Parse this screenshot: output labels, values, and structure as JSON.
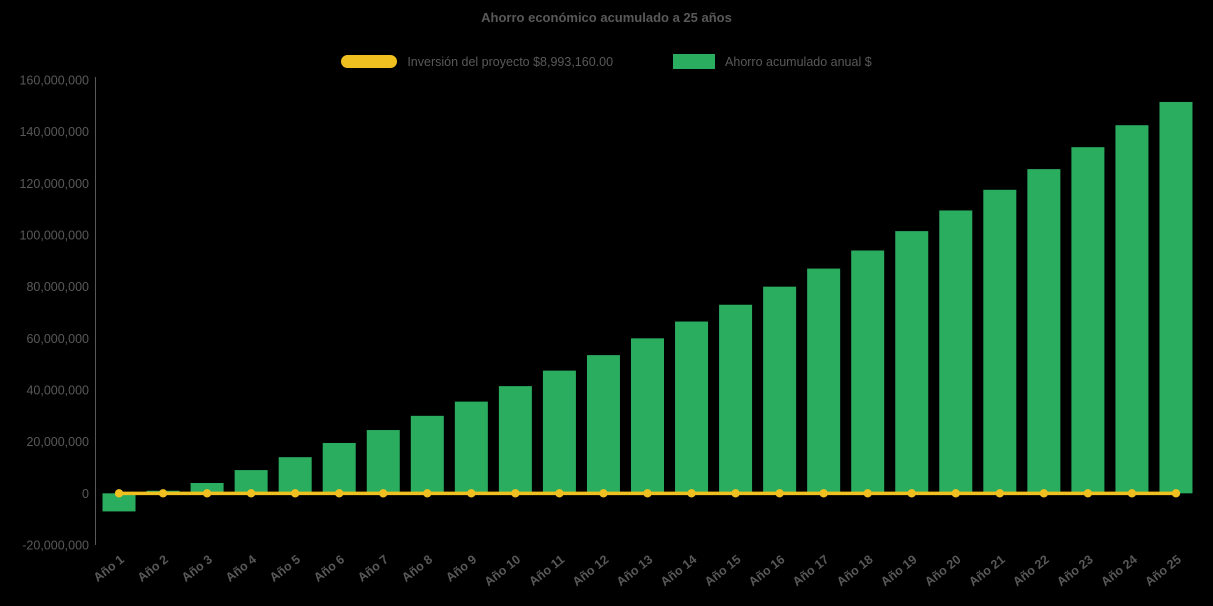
{
  "chart_data": {
    "type": "bar",
    "title": "Ahorro económico acumulado a 25 años",
    "background_color": "#000000",
    "text_color": "#595959",
    "grid": false,
    "legend_position": "top",
    "x_label_rotation": -38,
    "ylim": [
      -20000000,
      160000000
    ],
    "ytick_step": 20000000,
    "ytick_labels": [
      "-20,000,000",
      "0",
      "20,000,000",
      "40,000,000",
      "60,000,000",
      "80,000,000",
      "100,000,000",
      "120,000,000",
      "140,000,000",
      "160,000,000"
    ],
    "categories": [
      "Año 1",
      "Año 2",
      "Año 3",
      "Año 4",
      "Año 5",
      "Año 6",
      "Año 7",
      "Año 8",
      "Año 9",
      "Año 10",
      "Año 11",
      "Año 12",
      "Año 13",
      "Año 14",
      "Año 15",
      "Año 16",
      "Año 17",
      "Año 18",
      "Año 19",
      "Año 20",
      "Año 21",
      "Año 22",
      "Año 23",
      "Año 24",
      "Año 25"
    ],
    "series": [
      {
        "name": "Inversión del proyecto $8,993,160.00",
        "type": "line",
        "color": "#F0C020",
        "marker": "circle",
        "plotted_value": 0
      },
      {
        "name": "Ahorro acumulado anual $",
        "type": "bar",
        "color": "#2BAD60",
        "values": [
          -7000000,
          1000000,
          4000000,
          9000000,
          14000000,
          19500000,
          24500000,
          30000000,
          35500000,
          41500000,
          47500000,
          53500000,
          60000000,
          66500000,
          73000000,
          80000000,
          87000000,
          94000000,
          101500000,
          109500000,
          117500000,
          125500000,
          134000000,
          142500000,
          151500000
        ]
      }
    ]
  }
}
